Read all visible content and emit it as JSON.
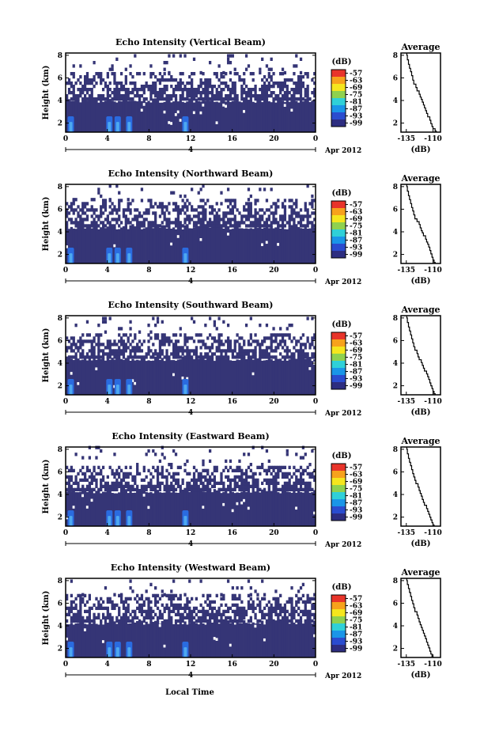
{
  "figure": {
    "xlabel": "Local Time",
    "date_label": "Apr 2012",
    "day_label": "4",
    "colorbar_unit": "(dB)",
    "colorbar_ticks": [
      "-57",
      "-63",
      "-69",
      "-75",
      "-81",
      "-87",
      "-93",
      "-99"
    ],
    "colorbar_colors": [
      "#e8342a",
      "#f7a21c",
      "#f5e61e",
      "#8fd14f",
      "#2fd0d8",
      "#1a95e8",
      "#2a4ccf",
      "#2d2d80"
    ],
    "heatmap_colors": {
      "background_echo": "#353576",
      "strong_echo": "#2a6be0",
      "peak_echo": "#4da8f0"
    },
    "average_title": "Average",
    "average_xlabel": "(dB)"
  },
  "chart_data": [
    {
      "type": "heatmap",
      "title": "Echo Intensity (Vertical Beam)",
      "ylabel": "Height (km)",
      "x_ticks": [
        "0",
        "4",
        "8",
        "12",
        "16",
        "20",
        "0"
      ],
      "y_ticks": [
        "2",
        "4",
        "6",
        "8"
      ],
      "xlim": [
        0,
        24
      ],
      "ylim": [
        1.2,
        8.2
      ],
      "value_range_db": [
        -99,
        -57
      ],
      "echo_layers_km": [
        [
          1.2,
          4.0
        ],
        [
          4.0,
          6.3
        ]
      ],
      "strong_echo_hours": [
        0.5,
        4.2,
        5.0,
        6.1,
        11.5
      ],
      "average": {
        "type": "line",
        "title": "Average",
        "xlabel": "(dB)",
        "x_ticks": [
          "-135",
          "-110"
        ],
        "y_ticks": [
          "2",
          "4",
          "6",
          "8"
        ],
        "xlim": [
          -140,
          -103
        ],
        "ylim": [
          1.2,
          8.2
        ],
        "x": [
          -134.5,
          -134,
          -133,
          -132,
          -131,
          -130,
          -129,
          -128,
          -126,
          -125,
          -123,
          -122,
          -121,
          -120,
          -119,
          -118,
          -117,
          -116,
          -115,
          -113,
          -112,
          -111,
          -110,
          -108,
          -107
        ],
        "y": [
          8.2,
          7.8,
          7.4,
          7.0,
          6.7,
          6.4,
          6.0,
          5.6,
          5.3,
          5.0,
          4.7,
          4.4,
          4.2,
          4.0,
          3.7,
          3.5,
          3.2,
          3.0,
          2.7,
          2.4,
          2.1,
          1.8,
          1.6,
          1.4,
          1.2
        ]
      }
    },
    {
      "type": "heatmap",
      "title": "Echo Intensity (Northward Beam)",
      "ylabel": "Height (km)",
      "x_ticks": [
        "0",
        "4",
        "8",
        "12",
        "16",
        "20",
        "0"
      ],
      "y_ticks": [
        "2",
        "4",
        "6",
        "8"
      ],
      "xlim": [
        0,
        24
      ],
      "ylim": [
        1.2,
        8.2
      ],
      "value_range_db": [
        -99,
        -57
      ],
      "echo_layers_km": [
        [
          1.2,
          4.4
        ],
        [
          4.4,
          6.7
        ]
      ],
      "strong_echo_hours": [
        0.5,
        4.2,
        5.0,
        6.1,
        11.5
      ],
      "average": {
        "type": "line",
        "title": "Average",
        "xlabel": "(dB)",
        "x_ticks": [
          "-135",
          "-110"
        ],
        "y_ticks": [
          "2",
          "4",
          "6",
          "8"
        ],
        "xlim": [
          -140,
          -103
        ],
        "ylim": [
          1.2,
          8.2
        ],
        "x": [
          -134.5,
          -134,
          -133,
          -132,
          -131,
          -130,
          -129,
          -128,
          -127,
          -125,
          -123,
          -122,
          -121,
          -120,
          -119,
          -117,
          -116,
          -115,
          -114,
          -113,
          -112,
          -111,
          -110,
          -109,
          -108
        ],
        "y": [
          8.2,
          7.8,
          7.4,
          7.0,
          6.7,
          6.3,
          6.0,
          5.7,
          5.3,
          5.0,
          4.8,
          4.5,
          4.2,
          4.0,
          3.8,
          3.5,
          3.2,
          3.0,
          2.8,
          2.5,
          2.2,
          1.9,
          1.6,
          1.4,
          1.2
        ]
      }
    },
    {
      "type": "heatmap",
      "title": "Echo Intensity (Southward Beam)",
      "ylabel": "Height (km)",
      "x_ticks": [
        "0",
        "4",
        "8",
        "12",
        "16",
        "20",
        "0"
      ],
      "y_ticks": [
        "2",
        "4",
        "6",
        "8"
      ],
      "xlim": [
        0,
        24
      ],
      "ylim": [
        1.2,
        8.2
      ],
      "value_range_db": [
        -99,
        -57
      ],
      "echo_layers_km": [
        [
          1.2,
          4.4
        ],
        [
          4.4,
          6.6
        ]
      ],
      "strong_echo_hours": [
        0.5,
        4.2,
        5.0,
        6.1,
        11.5
      ],
      "average": {
        "type": "line",
        "title": "Average",
        "xlabel": "(dB)",
        "x_ticks": [
          "-135",
          "-110"
        ],
        "y_ticks": [
          "2",
          "4",
          "6",
          "8"
        ],
        "xlim": [
          -140,
          -103
        ],
        "ylim": [
          1.2,
          8.2
        ],
        "x": [
          -134.5,
          -134,
          -133,
          -132,
          -131,
          -130,
          -129,
          -128,
          -127,
          -125,
          -124,
          -123,
          -121,
          -120,
          -119,
          -118,
          -116,
          -115,
          -114,
          -113,
          -112,
          -111,
          -110,
          -109,
          -108
        ],
        "y": [
          8.2,
          7.8,
          7.4,
          7.0,
          6.7,
          6.3,
          6.0,
          5.6,
          5.3,
          5.0,
          4.7,
          4.4,
          4.2,
          3.9,
          3.7,
          3.4,
          3.2,
          2.9,
          2.7,
          2.4,
          2.1,
          1.9,
          1.6,
          1.4,
          1.2
        ]
      }
    },
    {
      "type": "heatmap",
      "title": "Echo Intensity (Eastward Beam)",
      "ylabel": "Height (km)",
      "x_ticks": [
        "0",
        "4",
        "8",
        "12",
        "16",
        "20",
        "0"
      ],
      "y_ticks": [
        "2",
        "4",
        "6",
        "8"
      ],
      "xlim": [
        0,
        24
      ],
      "ylim": [
        1.2,
        8.2
      ],
      "value_range_db": [
        -99,
        -57
      ],
      "echo_layers_km": [
        [
          1.2,
          4.3
        ],
        [
          4.3,
          6.5
        ]
      ],
      "strong_echo_hours": [
        0.5,
        4.2,
        5.0,
        6.1,
        11.5
      ],
      "average": {
        "type": "line",
        "title": "Average",
        "xlabel": "(dB)",
        "x_ticks": [
          "-135",
          "-110"
        ],
        "y_ticks": [
          "2",
          "4",
          "6",
          "8"
        ],
        "xlim": [
          -140,
          -103
        ],
        "ylim": [
          1.2,
          8.2
        ],
        "x": [
          -134.5,
          -134,
          -133,
          -132,
          -131,
          -130,
          -129,
          -128,
          -127,
          -126,
          -124,
          -123,
          -122,
          -121,
          -120,
          -119,
          -118,
          -116,
          -115,
          -114,
          -113,
          -112,
          -111,
          -110,
          -109
        ],
        "y": [
          8.2,
          7.8,
          7.4,
          7.0,
          6.7,
          6.4,
          6.0,
          5.7,
          5.4,
          5.1,
          4.8,
          4.5,
          4.2,
          4.0,
          3.7,
          3.4,
          3.2,
          2.9,
          2.6,
          2.4,
          2.1,
          1.9,
          1.6,
          1.4,
          1.2
        ]
      }
    },
    {
      "type": "heatmap",
      "title": "Echo Intensity (Westward Beam)",
      "ylabel": "Height (km)",
      "x_ticks": [
        "0",
        "4",
        "8",
        "12",
        "16",
        "20",
        "0"
      ],
      "y_ticks": [
        "2",
        "4",
        "6",
        "8"
      ],
      "xlim": [
        0,
        24
      ],
      "ylim": [
        1.2,
        8.2
      ],
      "value_range_db": [
        -99,
        -57
      ],
      "echo_layers_km": [
        [
          1.2,
          4.3
        ],
        [
          4.3,
          6.6
        ]
      ],
      "strong_echo_hours": [
        0.5,
        4.2,
        5.0,
        6.1,
        11.5
      ],
      "average": {
        "type": "line",
        "title": "Average",
        "xlabel": "(dB)",
        "x_ticks": [
          "-135",
          "-110"
        ],
        "y_ticks": [
          "2",
          "4",
          "6",
          "8"
        ],
        "xlim": [
          -140,
          -103
        ],
        "ylim": [
          1.2,
          8.2
        ],
        "x": [
          -134.5,
          -134,
          -133,
          -132,
          -131,
          -130,
          -129,
          -128,
          -127,
          -125,
          -124,
          -123,
          -122,
          -121,
          -120,
          -119,
          -118,
          -117,
          -116,
          -115,
          -114,
          -113,
          -112,
          -111,
          -110
        ],
        "y": [
          8.2,
          7.8,
          7.5,
          7.1,
          6.8,
          6.4,
          6.1,
          5.8,
          5.4,
          5.1,
          4.8,
          4.5,
          4.2,
          4.0,
          3.7,
          3.5,
          3.2,
          3.0,
          2.7,
          2.4,
          2.2,
          1.9,
          1.6,
          1.4,
          1.2
        ]
      }
    }
  ]
}
